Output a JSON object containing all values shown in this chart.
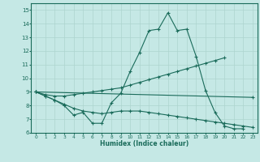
{
  "xlabel": "Humidex (Indice chaleur)",
  "xlim": [
    -0.5,
    23.5
  ],
  "ylim": [
    6,
    15.5
  ],
  "yticks": [
    6,
    7,
    8,
    9,
    10,
    11,
    12,
    13,
    14,
    15
  ],
  "xticks": [
    0,
    1,
    2,
    3,
    4,
    5,
    6,
    7,
    8,
    9,
    10,
    11,
    12,
    13,
    14,
    15,
    16,
    17,
    18,
    19,
    20,
    21,
    22,
    23
  ],
  "bg_color": "#c5e8e5",
  "grid_color": "#aed4cf",
  "line_color": "#1a6b5a",
  "lines": [
    {
      "x": [
        0,
        1,
        2,
        3,
        4,
        5,
        6,
        7,
        8,
        9,
        10,
        11,
        12,
        13,
        14,
        15,
        16,
        17,
        18,
        19,
        20,
        21,
        22
      ],
      "y": [
        9.0,
        8.7,
        8.4,
        8.0,
        7.3,
        7.5,
        6.7,
        6.7,
        8.2,
        8.9,
        10.5,
        11.9,
        13.5,
        13.6,
        14.8,
        13.5,
        13.6,
        11.6,
        9.1,
        7.5,
        6.5,
        6.3,
        6.3
      ]
    },
    {
      "x": [
        0,
        1,
        2,
        3,
        4,
        5,
        6,
        7,
        8,
        9,
        10,
        11,
        12,
        13,
        14,
        15,
        16,
        17,
        18,
        19,
        20
      ],
      "y": [
        9.0,
        8.8,
        8.7,
        8.7,
        8.8,
        8.9,
        9.0,
        9.1,
        9.2,
        9.3,
        9.5,
        9.7,
        9.9,
        10.1,
        10.3,
        10.5,
        10.7,
        10.9,
        11.1,
        11.3,
        11.5
      ]
    },
    {
      "x": [
        0,
        23
      ],
      "y": [
        9.0,
        8.6
      ]
    },
    {
      "x": [
        0,
        1,
        2,
        3,
        4,
        5,
        6,
        7,
        8,
        9,
        10,
        11,
        12,
        13,
        14,
        15,
        16,
        17,
        18,
        19,
        20,
        21,
        22,
        23
      ],
      "y": [
        9.0,
        8.7,
        8.4,
        8.1,
        7.8,
        7.6,
        7.5,
        7.4,
        7.5,
        7.6,
        7.6,
        7.6,
        7.5,
        7.4,
        7.3,
        7.2,
        7.1,
        7.0,
        6.9,
        6.8,
        6.7,
        6.6,
        6.5,
        6.4
      ]
    }
  ]
}
